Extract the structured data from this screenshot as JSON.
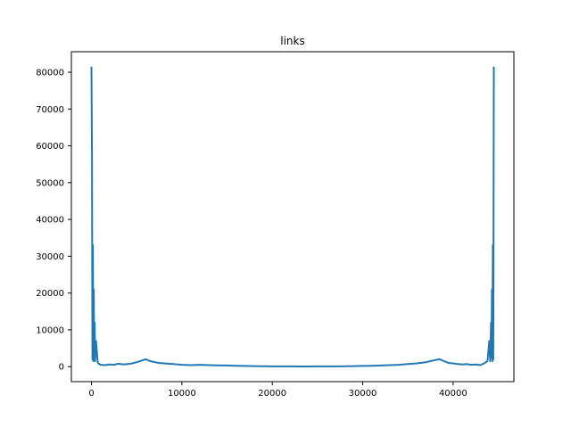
{
  "chart_data": {
    "type": "line",
    "title": "links",
    "xlabel": "",
    "ylabel": "",
    "xlim": [
      -2225,
      46725
    ],
    "ylim": [
      -4075,
      85575
    ],
    "xticks": [
      0,
      10000,
      20000,
      30000,
      40000
    ],
    "yticks": [
      0,
      10000,
      20000,
      30000,
      40000,
      50000,
      60000,
      70000,
      80000
    ],
    "grid": false,
    "series": [
      {
        "color": "#1f77b4",
        "x": [
          0,
          50,
          100,
          150,
          200,
          250,
          300,
          350,
          400,
          500,
          700,
          1000,
          1500,
          2000,
          2500,
          3000,
          3500,
          4000,
          4500,
          5000,
          5500,
          6000,
          6500,
          7000,
          7500,
          8000,
          9000,
          10000,
          11000,
          12000,
          13000,
          14000,
          15000,
          16000,
          17000,
          18000,
          19000,
          20000,
          21000,
          22000,
          23000,
          24000,
          25000,
          26000,
          27000,
          28000,
          29000,
          30000,
          31000,
          32000,
          33000,
          34000,
          35000,
          36000,
          37000,
          37500,
          38000,
          38500,
          39000,
          39500,
          40000,
          40500,
          41000,
          41500,
          42000,
          42500,
          43000,
          43500,
          43800,
          44000,
          44100,
          44200,
          44250,
          44300,
          44350,
          44400,
          44450,
          44500
        ],
        "y": [
          81500,
          57500,
          2000,
          33000,
          1500,
          21000,
          2500,
          12000,
          1500,
          7000,
          1000,
          500,
          400,
          600,
          500,
          800,
          600,
          700,
          900,
          1200,
          1600,
          2000,
          1500,
          1200,
          1000,
          900,
          700,
          500,
          400,
          500,
          400,
          350,
          300,
          250,
          200,
          150,
          100,
          80,
          70,
          60,
          50,
          50,
          60,
          70,
          80,
          100,
          150,
          200,
          250,
          300,
          400,
          500,
          700,
          900,
          1200,
          1500,
          1800,
          2000,
          1500,
          1000,
          900,
          700,
          600,
          700,
          500,
          600,
          400,
          1000,
          1500,
          7000,
          1500,
          12000,
          2500,
          21000,
          1500,
          33000,
          2000,
          81500
        ]
      }
    ]
  }
}
